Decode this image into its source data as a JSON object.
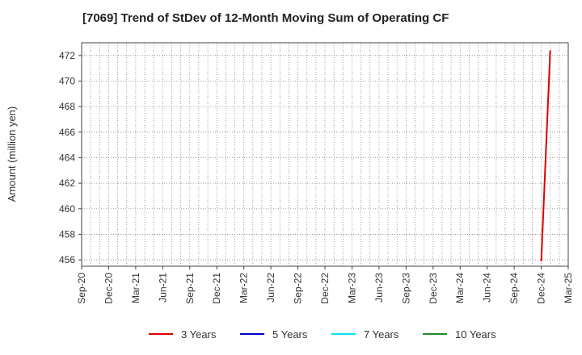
{
  "chart_data": {
    "type": "line",
    "title": "[7069]  Trend of StDev of 12-Month Moving Sum of Operating CF",
    "xlabel": "",
    "ylabel": "Amount (million yen)",
    "ylim": [
      455.5,
      473
    ],
    "yticks": [
      456,
      458,
      460,
      462,
      464,
      466,
      468,
      470,
      472
    ],
    "xticks": [
      "Sep-20",
      "Dec-20",
      "Mar-21",
      "Jun-21",
      "Sep-21",
      "Dec-21",
      "Mar-22",
      "Jun-22",
      "Sep-22",
      "Dec-22",
      "Mar-23",
      "Jun-23",
      "Sep-23",
      "Dec-23",
      "Mar-24",
      "Jun-24",
      "Sep-24",
      "Dec-24",
      "Mar-25"
    ],
    "x_month_range": [
      0,
      54
    ],
    "grid": true,
    "series": [
      {
        "name": "3 Years",
        "color": "#e00000",
        "points": [
          {
            "month": 51,
            "value": 455.9
          },
          {
            "month": 52,
            "value": 472.4
          }
        ]
      },
      {
        "name": "5 Years",
        "color": "#0000cc",
        "points": []
      },
      {
        "name": "7 Years",
        "color": "#00e5ee",
        "points": []
      },
      {
        "name": "10 Years",
        "color": "#228b22",
        "points": []
      }
    ]
  }
}
